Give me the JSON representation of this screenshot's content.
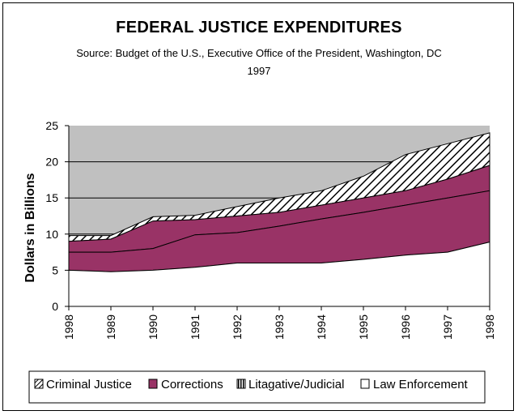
{
  "chart_data": {
    "type": "area",
    "title": "FEDERAL JUSTICE EXPENDITURES",
    "subtitle": "Source: Budget of the U.S., Executive Office of the President, Washington, DC",
    "subtitle2": "1997",
    "ylabel": "Dollars in Billions",
    "xlabel": "",
    "categories": [
      "1998",
      "1989",
      "1990",
      "1991",
      "1992",
      "1993",
      "1994",
      "1995",
      "1996",
      "1997",
      "1998"
    ],
    "ylim": [
      0,
      25
    ],
    "yticks": [
      "0",
      "5",
      "10",
      "15",
      "20",
      "25"
    ],
    "grid": "horizontal",
    "stacked": true,
    "series_cumulative": [
      {
        "name": "Law Enforcement",
        "values": [
          5,
          4.8,
          5,
          5.4,
          6,
          6,
          6,
          6.5,
          7.1,
          7.5,
          8.9
        ]
      },
      {
        "name": "Corrections",
        "values": [
          7.5,
          7.5,
          8,
          9.9,
          10.2,
          11.1,
          12.1,
          13,
          14,
          15,
          16
        ]
      },
      {
        "name": "Litagative/Judicial",
        "values": [
          9,
          9.3,
          11.8,
          12,
          12.5,
          13,
          14,
          15,
          16,
          17.6,
          19.5
        ]
      },
      {
        "name": "Criminal Justice",
        "values": [
          9.8,
          9.8,
          12.4,
          12.6,
          13.8,
          15,
          16,
          18,
          21,
          22.5,
          24
        ]
      }
    ],
    "legend": [
      "Criminal Justice",
      "Corrections",
      "Litagative/Judicial",
      "Law Enforcement"
    ],
    "legend_position": "bottom",
    "colors": {
      "law_enforcement": "#ffffff",
      "corrections": "#993366",
      "litagative_judicial": "#993366",
      "criminal_justice_hatch": "#000000",
      "plot_background": "#c0c0c0"
    }
  }
}
